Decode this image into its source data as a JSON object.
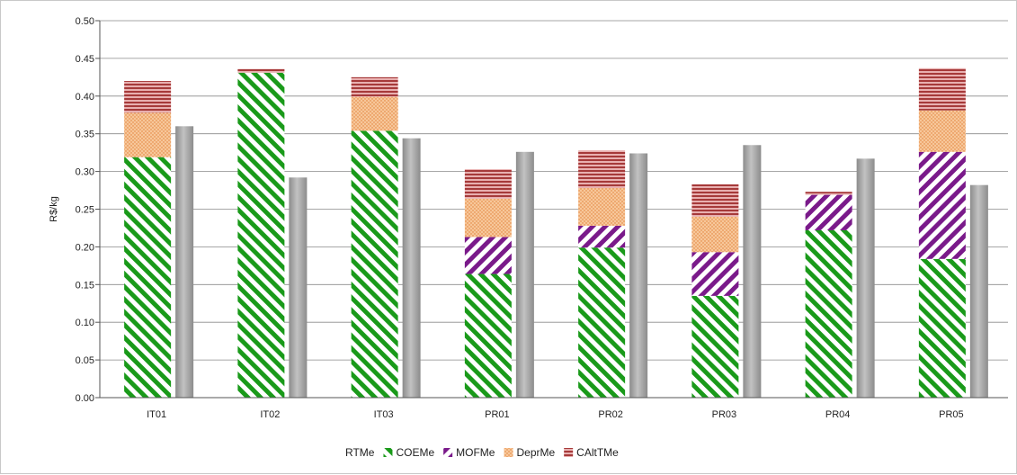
{
  "chart_data": {
    "type": "bar",
    "ylabel": "R$/kg",
    "ylim": [
      0,
      0.5
    ],
    "grid": true,
    "legend_position": "bottom",
    "y_ticks": [
      "0.00",
      "0.05",
      "0.10",
      "0.15",
      "0.20",
      "0.25",
      "0.30",
      "0.35",
      "0.40",
      "0.45",
      "0.50"
    ],
    "categories": [
      "IT01",
      "IT02",
      "IT03",
      "PR01",
      "PR02",
      "PR03",
      "PR04",
      "PR05"
    ],
    "stacked_series": [
      {
        "name": "COEMe",
        "color": "#1a9a1a",
        "pattern": "diagonal-stripes",
        "values": [
          0.319,
          0.431,
          0.354,
          0.164,
          0.199,
          0.135,
          0.222,
          0.184
        ]
      },
      {
        "name": "MOFMe",
        "color": "#7a1a8a",
        "pattern": "diagonal-stripes",
        "values": [
          0.0,
          0.0,
          0.0,
          0.049,
          0.029,
          0.058,
          0.047,
          0.142
        ]
      },
      {
        "name": "DeprMe",
        "color": "#f4a460",
        "pattern": "dots",
        "values": [
          0.059,
          0.0,
          0.045,
          0.051,
          0.05,
          0.047,
          0.0,
          0.055
        ]
      },
      {
        "name": "CAltTMe",
        "color": "#b04848",
        "pattern": "horizontal-stripes",
        "values": [
          0.042,
          0.005,
          0.026,
          0.039,
          0.05,
          0.043,
          0.004,
          0.056
        ]
      }
    ],
    "side_series": {
      "name": "RTMe",
      "color": "#a6a6a6",
      "values": [
        0.36,
        0.292,
        0.344,
        0.326,
        0.324,
        0.335,
        0.317,
        0.282
      ]
    }
  }
}
